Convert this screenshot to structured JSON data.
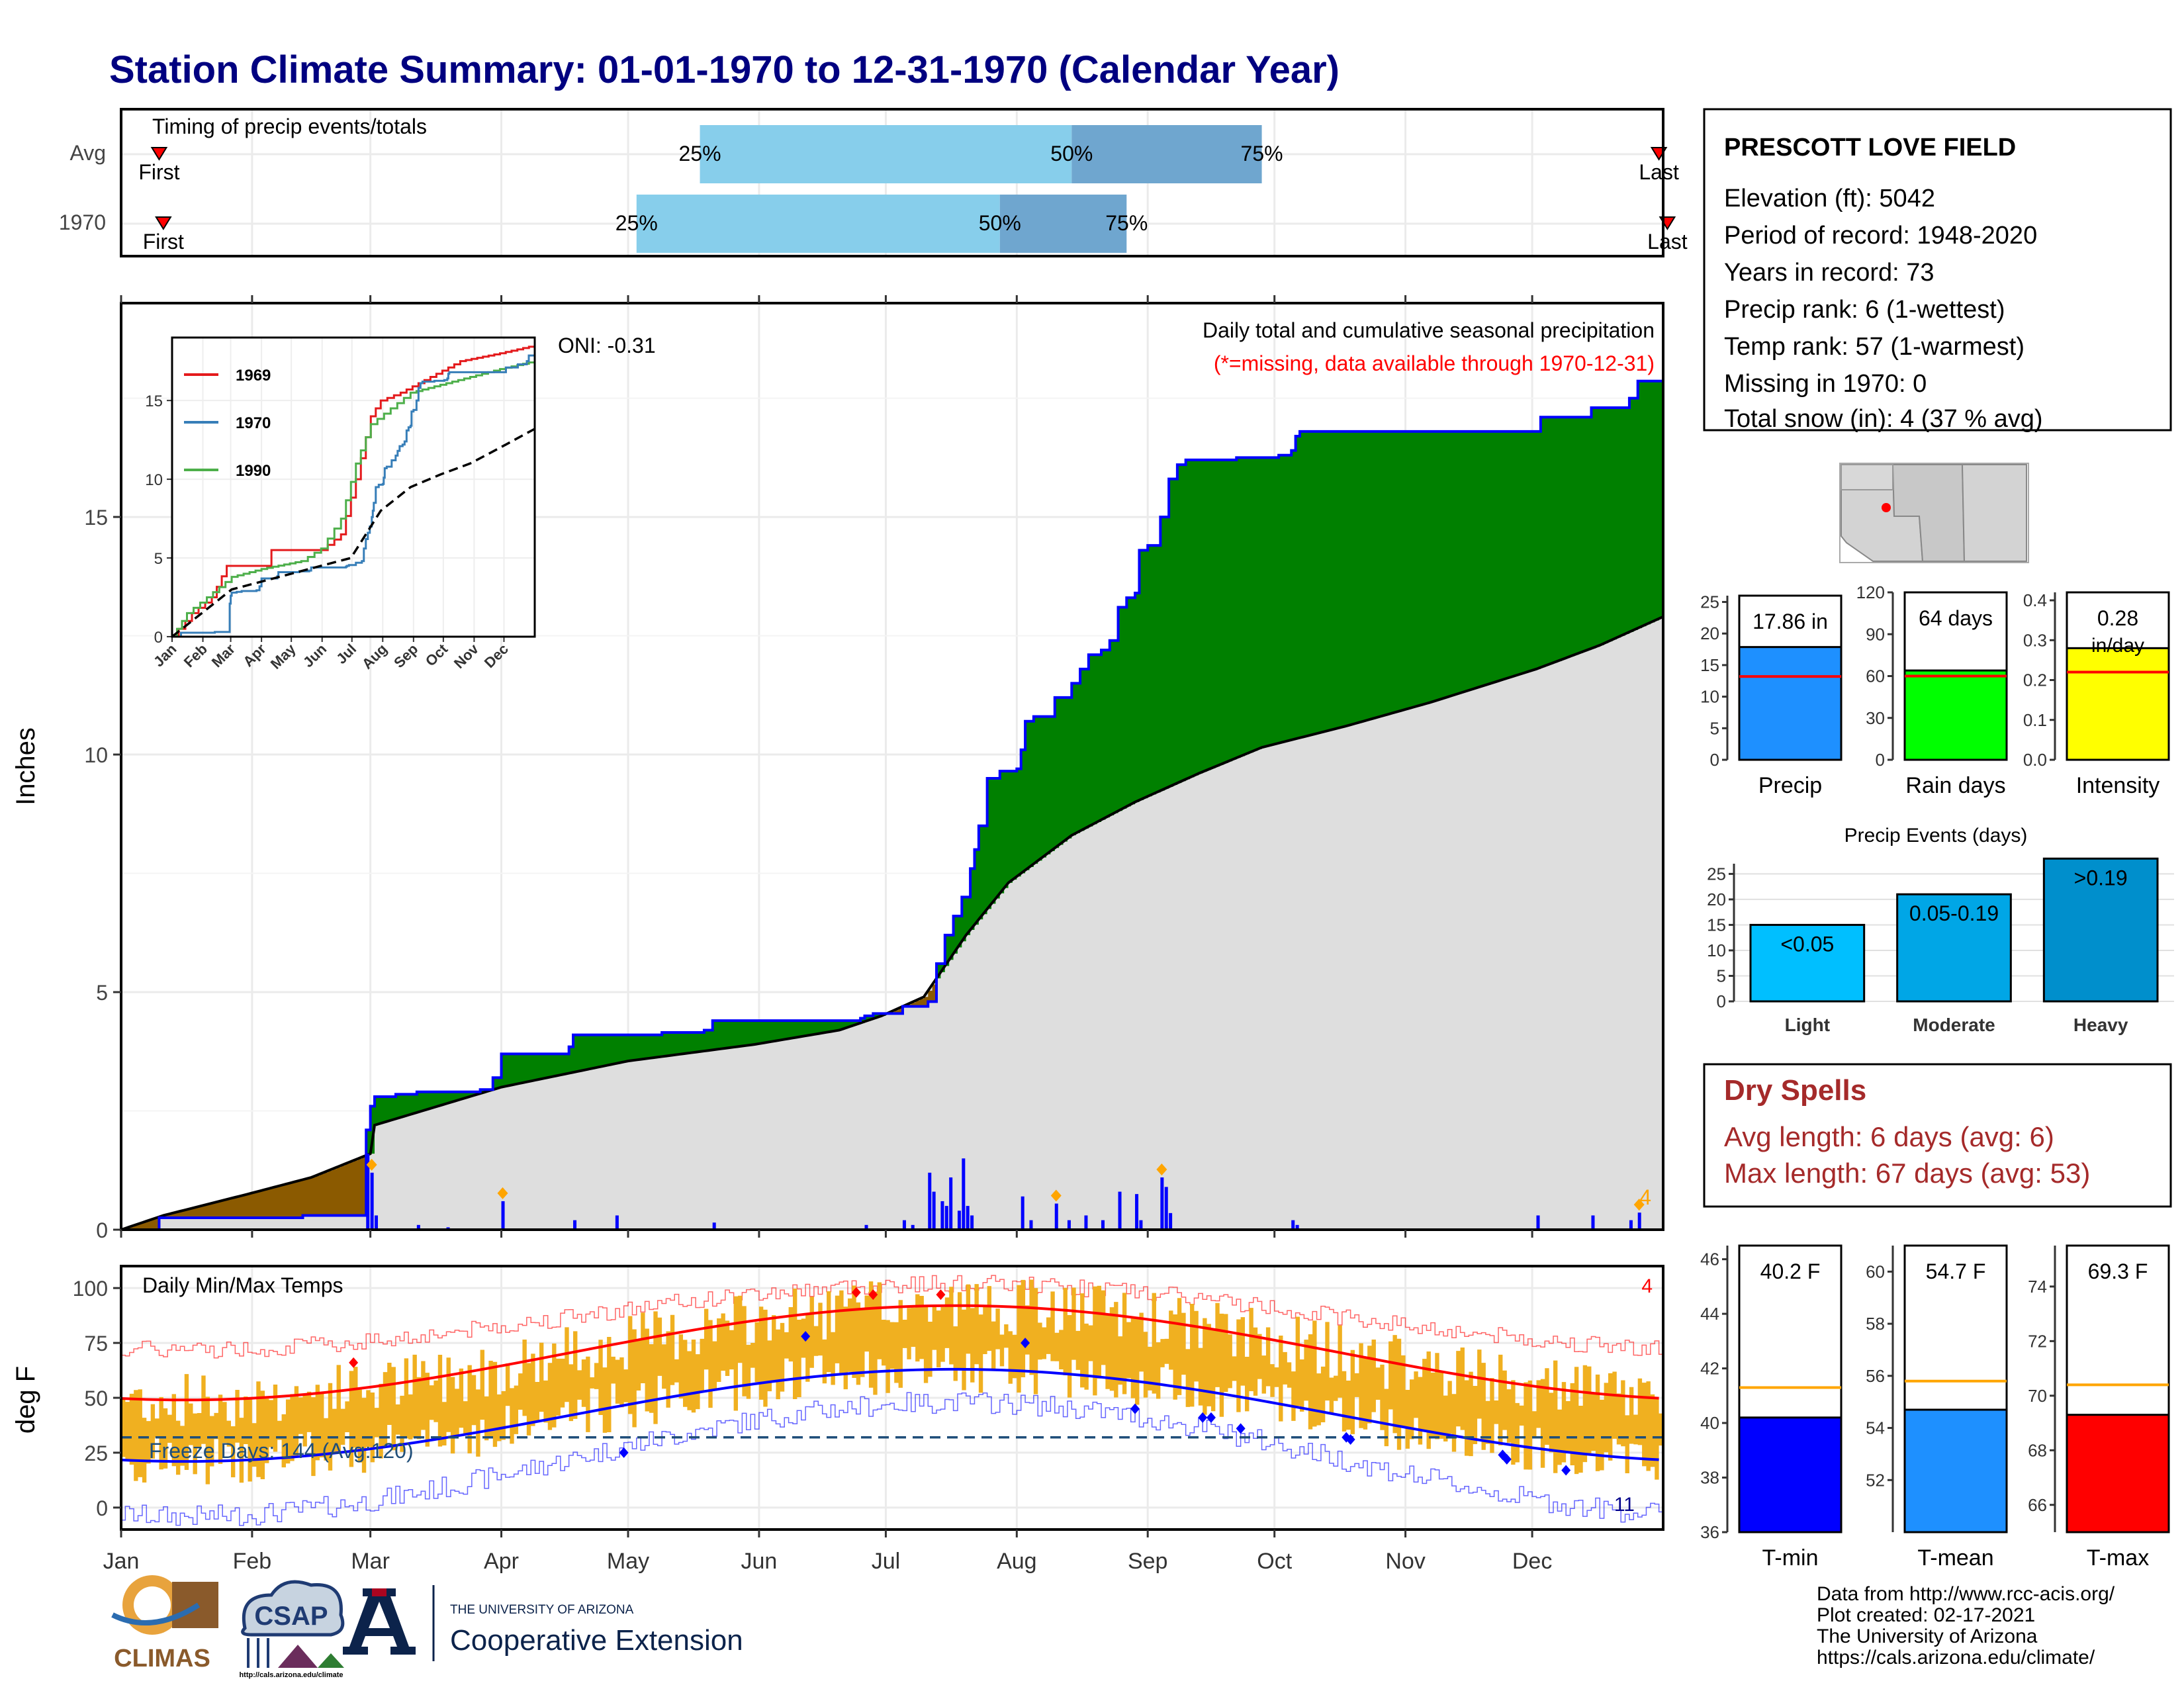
{
  "title": "Station Climate Summary: 01-01-1970 to 12-31-1970 (Calendar Year)",
  "colors": {
    "title": "#000080",
    "green": "#008000",
    "brown": "#8b5a00",
    "gray": "#dedede",
    "blue": "#0000ff",
    "orange": "#f0b020",
    "red": "#ff0000",
    "darkred": "#a52a2a",
    "lightblue": "#87ceeb",
    "midblue": "#6fa6cf"
  },
  "months": [
    "Jan",
    "Feb",
    "Mar",
    "Apr",
    "May",
    "Jun",
    "Jul",
    "Aug",
    "Sep",
    "Oct",
    "Nov",
    "Dec"
  ],
  "timing": {
    "label": "Timing of precip events/totals",
    "rows": [
      {
        "name": "Avg",
        "first_label": "First",
        "last_label": "Last",
        "p25_label": "25%",
        "p50_label": "50%",
        "p75_label": "75%",
        "first_day": 9,
        "p25_day": 137,
        "p50_day": 225,
        "p75_day": 270,
        "last_day": 364
      },
      {
        "name": "1970",
        "first_label": "First",
        "last_label": "Last",
        "p25_label": "25%",
        "p50_label": "50%",
        "p75_label": "75%",
        "first_day": 10,
        "p25_day": 122,
        "p50_day": 208,
        "p75_day": 238,
        "last_day": 366
      }
    ]
  },
  "station": {
    "name": "PRESCOTT LOVE FIELD",
    "lines": [
      "Elevation (ft): 5042",
      "Period of record: 1948-2020",
      "Years in record: 73",
      "Precip rank: 6 (1-wettest)",
      "Temp rank: 57 (1-warmest)",
      "Missing in 1970: 0",
      "Total snow (in): 4 (37 % avg)"
    ]
  },
  "precip_chart": {
    "ylabel": "Inches",
    "caption": "Daily total and cumulative seasonal precipitation",
    "missing_note": "(*=missing, data available through 1970-12-31)",
    "oni": "ONI: -0.31",
    "snow_count": "4",
    "yticks": [
      "0",
      "5",
      "10",
      "15"
    ],
    "ylim": [
      0,
      19.5
    ],
    "cumulative_1970": [
      [
        0,
        0.0
      ],
      [
        8,
        0.0
      ],
      [
        9,
        0.25
      ],
      [
        42,
        0.25
      ],
      [
        43,
        0.3
      ],
      [
        54,
        0.3
      ],
      [
        55,
        0.3
      ],
      [
        58,
        2.1
      ],
      [
        59,
        2.6
      ],
      [
        60,
        2.8
      ],
      [
        65,
        2.85
      ],
      [
        70,
        2.9
      ],
      [
        85,
        2.95
      ],
      [
        88,
        3.2
      ],
      [
        90,
        3.7
      ],
      [
        106,
        3.85
      ],
      [
        107,
        4.1
      ],
      [
        128,
        4.15
      ],
      [
        138,
        4.2
      ],
      [
        140,
        4.4
      ],
      [
        175,
        4.45
      ],
      [
        176,
        4.5
      ],
      [
        178,
        4.55
      ],
      [
        185,
        4.7
      ],
      [
        191,
        4.8
      ],
      [
        193,
        5.6
      ],
      [
        195,
        6.2
      ],
      [
        197,
        6.6
      ],
      [
        199,
        7.0
      ],
      [
        201,
        7.6
      ],
      [
        202,
        8.0
      ],
      [
        203,
        8.5
      ],
      [
        205,
        9.5
      ],
      [
        208,
        9.65
      ],
      [
        212,
        9.7
      ],
      [
        213,
        10.1
      ],
      [
        214,
        10.7
      ],
      [
        216,
        10.8
      ],
      [
        221,
        11.2
      ],
      [
        225,
        11.5
      ],
      [
        227,
        11.8
      ],
      [
        229,
        12.1
      ],
      [
        232,
        12.2
      ],
      [
        234,
        12.4
      ],
      [
        236,
        13.1
      ],
      [
        238,
        13.3
      ],
      [
        240,
        13.4
      ],
      [
        241,
        14.3
      ],
      [
        243,
        14.4
      ],
      [
        246,
        15.0
      ],
      [
        248,
        15.8
      ],
      [
        250,
        16.1
      ],
      [
        252,
        16.2
      ],
      [
        264,
        16.25
      ],
      [
        274,
        16.3
      ],
      [
        275,
        16.3
      ],
      [
        276,
        16.3
      ],
      [
        277,
        16.4
      ],
      [
        278,
        16.7
      ],
      [
        279,
        16.8
      ],
      [
        300,
        16.8
      ],
      [
        335,
        16.8
      ],
      [
        336,
        17.1
      ],
      [
        348,
        17.3
      ],
      [
        357,
        17.5
      ],
      [
        359,
        17.86
      ],
      [
        365,
        17.86
      ]
    ],
    "avg_cumulative": [
      [
        0,
        0
      ],
      [
        10,
        0.3
      ],
      [
        30,
        0.75
      ],
      [
        45,
        1.1
      ],
      [
        59,
        1.6
      ],
      [
        60,
        2.2
      ],
      [
        75,
        2.6
      ],
      [
        90,
        3.0
      ],
      [
        120,
        3.55
      ],
      [
        150,
        3.9
      ],
      [
        170,
        4.2
      ],
      [
        180,
        4.5
      ],
      [
        190,
        4.9
      ],
      [
        200,
        6.2
      ],
      [
        210,
        7.3
      ],
      [
        225,
        8.3
      ],
      [
        240,
        9.0
      ],
      [
        255,
        9.6
      ],
      [
        270,
        10.15
      ],
      [
        290,
        10.6
      ],
      [
        310,
        11.1
      ],
      [
        335,
        11.8
      ],
      [
        350,
        12.3
      ],
      [
        365,
        12.9
      ]
    ],
    "daily_bars": [
      [
        58,
        1.6
      ],
      [
        59,
        1.2
      ],
      [
        60,
        0.3
      ],
      [
        70,
        0.1
      ],
      [
        77,
        0.05
      ],
      [
        90,
        0.6
      ],
      [
        107,
        0.2
      ],
      [
        117,
        0.3
      ],
      [
        140,
        0.15
      ],
      [
        176,
        0.1
      ],
      [
        185,
        0.2
      ],
      [
        187,
        0.1
      ],
      [
        191,
        1.2
      ],
      [
        192,
        0.8
      ],
      [
        194,
        0.6
      ],
      [
        195,
        0.5
      ],
      [
        196,
        1.1
      ],
      [
        198,
        0.4
      ],
      [
        199,
        1.5
      ],
      [
        200,
        0.5
      ],
      [
        201,
        0.3
      ],
      [
        213,
        0.7
      ],
      [
        215,
        0.2
      ],
      [
        221,
        0.55
      ],
      [
        224,
        0.2
      ],
      [
        228,
        0.3
      ],
      [
        232,
        0.2
      ],
      [
        236,
        0.8
      ],
      [
        240,
        0.75
      ],
      [
        241,
        0.2
      ],
      [
        246,
        1.1
      ],
      [
        247,
        0.9
      ],
      [
        248,
        0.35
      ],
      [
        277,
        0.2
      ],
      [
        278,
        0.1
      ],
      [
        335,
        0.3
      ],
      [
        348,
        0.3
      ],
      [
        357,
        0.2
      ],
      [
        359,
        0.36
      ]
    ],
    "snow_days": [
      59,
      90,
      221,
      246,
      359
    ]
  },
  "inset": {
    "legend": [
      {
        "name": "1969",
        "color": "#e41a1c"
      },
      {
        "name": "1970",
        "color": "#377eb8"
      },
      {
        "name": "1990",
        "color": "#4daf4a"
      }
    ],
    "yticks": [
      "0",
      "5",
      "10",
      "15"
    ],
    "months": [
      "Jan",
      "Feb",
      "Mar",
      "Apr",
      "May",
      "Jun",
      "Jul",
      "Aug",
      "Sep",
      "Oct",
      "Nov",
      "Dec"
    ],
    "series_1969": [
      [
        0,
        0
      ],
      [
        20,
        1.5
      ],
      [
        40,
        2.5
      ],
      [
        55,
        4.5
      ],
      [
        95,
        4.5
      ],
      [
        100,
        5.5
      ],
      [
        150,
        5.5
      ],
      [
        170,
        6.5
      ],
      [
        185,
        10
      ],
      [
        200,
        14
      ],
      [
        210,
        15
      ],
      [
        230,
        15.5
      ],
      [
        260,
        16.5
      ],
      [
        290,
        17.5
      ],
      [
        330,
        18
      ],
      [
        365,
        18.5
      ]
    ],
    "series_1990": [
      [
        0,
        0
      ],
      [
        15,
        1.5
      ],
      [
        35,
        2.5
      ],
      [
        60,
        3.8
      ],
      [
        90,
        4.3
      ],
      [
        130,
        4.8
      ],
      [
        150,
        5.6
      ],
      [
        170,
        7.5
      ],
      [
        185,
        11
      ],
      [
        200,
        13.5
      ],
      [
        220,
        14.5
      ],
      [
        240,
        15.5
      ],
      [
        270,
        16
      ],
      [
        300,
        16.5
      ],
      [
        330,
        17
      ],
      [
        365,
        17.5
      ]
    ],
    "avg_curve": [
      [
        0,
        0
      ],
      [
        30,
        1.5
      ],
      [
        60,
        3
      ],
      [
        120,
        4
      ],
      [
        180,
        5
      ],
      [
        210,
        8
      ],
      [
        240,
        9.5
      ],
      [
        270,
        10.3
      ],
      [
        300,
        11
      ],
      [
        330,
        12
      ],
      [
        365,
        13.2
      ]
    ]
  },
  "bars_precip": {
    "label": "Precip",
    "value_label": "17.86 in",
    "value": 17.86,
    "avg": 13.2,
    "ylim": [
      0,
      26
    ],
    "ticks": [
      "0",
      "5",
      "10",
      "15",
      "20",
      "25"
    ]
  },
  "bars_raindays": {
    "label": "Rain days",
    "value_label": "64 days",
    "value": 64,
    "avg": 60,
    "ylim": [
      0,
      120
    ],
    "ticks": [
      "0",
      "30",
      "60",
      "90",
      "120"
    ]
  },
  "bars_intensity": {
    "label": "Intensity",
    "value_label": "0.28",
    "unit_label": "in/day",
    "value": 0.28,
    "avg": 0.22,
    "ylim": [
      0,
      0.42
    ],
    "ticks": [
      "0.0",
      "0.1",
      "0.2",
      "0.3",
      "0.4"
    ]
  },
  "events": {
    "title": "Precip Events (days)",
    "ticks": [
      "0",
      "5",
      "10",
      "15",
      "20",
      "25"
    ],
    "ylim": [
      0,
      27
    ],
    "bars": [
      {
        "name": "Light",
        "label": "<0.05",
        "value": 15,
        "color": "#00bfff"
      },
      {
        "name": "Moderate",
        "label": "0.05-0.19",
        "value": 21,
        "color": "#00a6e6"
      },
      {
        "name": "Heavy",
        "label": ">0.19",
        "value": 28,
        "color": "#008fcc"
      }
    ]
  },
  "dry_spells": {
    "title": "Dry Spells",
    "avg": "Avg length: 6 days (avg: 6)",
    "max": "Max length: 67 days (avg: 53)"
  },
  "temps": {
    "title": "Daily Min/Max Temps",
    "ylabel": "deg F",
    "yticks": [
      "0",
      "25",
      "50",
      "75",
      "100"
    ],
    "ylim": [
      -10,
      110
    ],
    "freeze": "Freeze Days: 144 (Avg:120)",
    "count_hot": "4",
    "count_cold": "11",
    "freeze_line": 32
  },
  "tmin": {
    "label": "T-min",
    "value_label": "40.2 F",
    "value": 40.2,
    "avg": 41.3,
    "ylim": [
      36,
      46.5
    ],
    "ticks": [
      "36",
      "38",
      "40",
      "42",
      "44",
      "46"
    ]
  },
  "tmean": {
    "label": "T-mean",
    "value_label": "54.7 F",
    "value": 54.7,
    "avg": 55.8,
    "ylim": [
      50,
      61
    ],
    "ticks": [
      "52",
      "54",
      "56",
      "58",
      "60"
    ]
  },
  "tmax": {
    "label": "T-max",
    "value_label": "69.3 F",
    "value": 69.3,
    "avg": 70.4,
    "ylim": [
      65,
      75.5
    ],
    "ticks": [
      "66",
      "68",
      "70",
      "72",
      "74"
    ]
  },
  "footer": {
    "lines": [
      "Data from http://www.rcc-acis.org/",
      "Plot created: 02-17-2021",
      "The University of Arizona",
      "https://cals.arizona.edu/climate/"
    ]
  },
  "logos": {
    "climas": "CLIMAS",
    "csap": "CSAP",
    "csap_url": "http://cals.arizona.edu/climate",
    "ua_small": "THE UNIVERSITY OF ARIZONA",
    "ua_big": "Cooperative Extension"
  }
}
